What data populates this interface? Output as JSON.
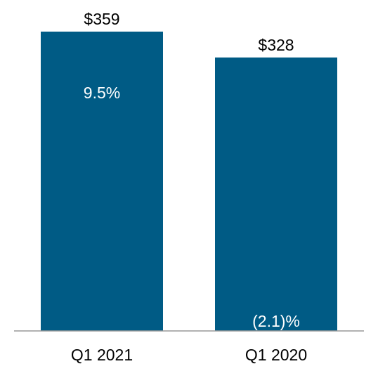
{
  "chart_data": {
    "type": "bar",
    "categories": [
      "Q1 2021",
      "Q1 2020"
    ],
    "values": [
      359,
      328
    ],
    "value_labels": [
      "$359",
      "$328"
    ],
    "inner_labels": [
      "9.5%",
      "(2.1)%"
    ],
    "title": "",
    "xlabel": "",
    "ylabel": "",
    "ylim": [
      0,
      359
    ],
    "grid": false,
    "legend": "none",
    "bar_color": "#005b85",
    "axis_color": "#999999"
  }
}
